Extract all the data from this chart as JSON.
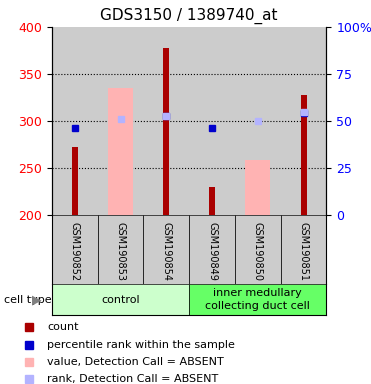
{
  "title": "GDS3150 / 1389740_at",
  "samples": [
    "GSM190852",
    "GSM190853",
    "GSM190854",
    "GSM190849",
    "GSM190850",
    "GSM190851"
  ],
  "count_values": [
    272,
    null,
    378,
    230,
    null,
    328
  ],
  "value_absent": [
    null,
    335,
    null,
    null,
    258,
    null
  ],
  "rank_absent": [
    null,
    302,
    305,
    null,
    300,
    310
  ],
  "percentile_values": [
    293,
    null,
    305,
    293,
    null,
    308
  ],
  "ylim_left": [
    200,
    400
  ],
  "ylim_right": [
    0,
    100
  ],
  "left_ticks": [
    200,
    250,
    300,
    350,
    400
  ],
  "right_ticks": [
    0,
    25,
    50,
    75,
    100
  ],
  "bar_bottom": 200,
  "count_color": "#aa0000",
  "value_absent_color": "#ffb3b3",
  "rank_absent_color": "#b3b3ff",
  "percentile_color": "#0000cc",
  "control_color": "#ccffcc",
  "imcd_color": "#66ff66",
  "col_bg_color": "#cccccc",
  "title_fontsize": 11,
  "tick_fontsize": 9,
  "label_fontsize": 8,
  "group_label_fontsize": 8,
  "pink_bar_width": 0.55,
  "red_bar_width": 0.13
}
